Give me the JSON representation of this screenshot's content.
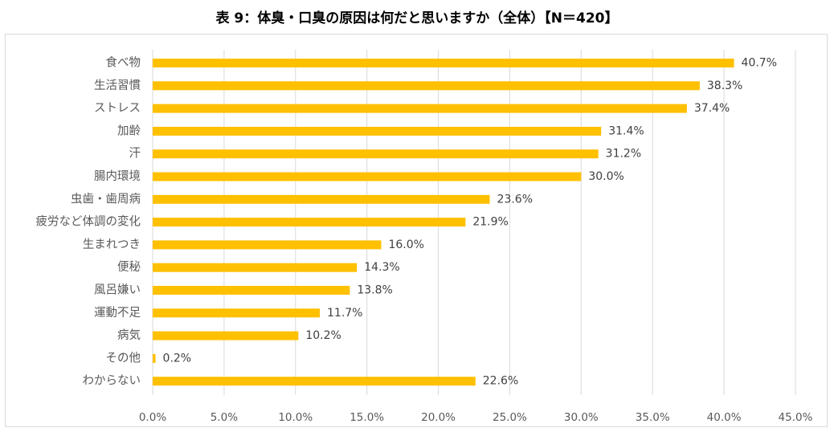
{
  "title": "表 9：体臭・口臭の原因は何だと思いますか（全体）【N＝420】",
  "chart_data": {
    "type": "bar",
    "orientation": "horizontal",
    "categories": [
      "食べ物",
      "生活習慣",
      "ストレス",
      "加齢",
      "汗",
      "腸内環境",
      "虫歯・歯周病",
      "疲労など体調の変化",
      "生まれつき",
      "便秘",
      "風呂嫌い",
      "運動不足",
      "病気",
      "その他",
      "わからない"
    ],
    "values": [
      40.7,
      38.3,
      37.4,
      31.4,
      31.2,
      30.0,
      23.6,
      21.9,
      16.0,
      14.3,
      13.8,
      11.7,
      10.2,
      0.2,
      22.6
    ],
    "value_labels": [
      "40.7%",
      "38.3%",
      "37.4%",
      "31.4%",
      "31.2%",
      "30.0%",
      "23.6%",
      "21.9%",
      "16.0%",
      "14.3%",
      "13.8%",
      "11.7%",
      "10.2%",
      "0.2%",
      "22.6%"
    ],
    "x_ticks": [
      "0.0%",
      "5.0%",
      "10.0%",
      "15.0%",
      "20.0%",
      "25.0%",
      "30.0%",
      "35.0%",
      "40.0%",
      "45.0%"
    ],
    "xlim": [
      0,
      45
    ],
    "tick_step": 5,
    "grid": true,
    "legend": "none",
    "bar_color": "#ffc000",
    "grid_color": "#d9d9d9"
  }
}
